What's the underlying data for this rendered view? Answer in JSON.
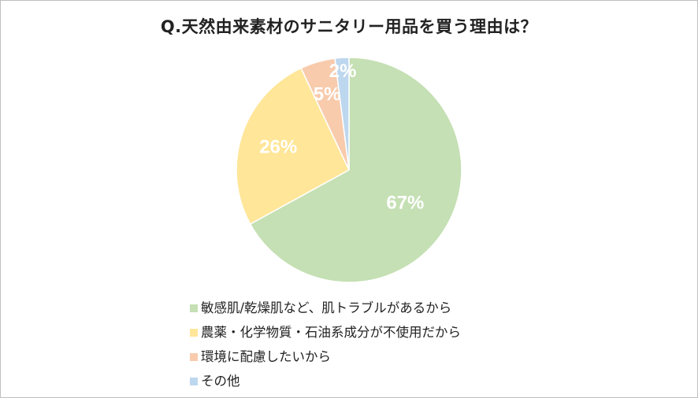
{
  "chart_data": {
    "type": "pie",
    "title": "Q.天然由来素材のサニタリー用品を買う理由は？",
    "slices": [
      {
        "label": "敏感肌/乾燥肌など、肌トラブルがあるから",
        "value": 67,
        "display": "67%",
        "color": "#c5e0b4"
      },
      {
        "label": "農薬・化学物質・石油系成分が不使用だから",
        "value": 26,
        "display": "26%",
        "color": "#ffe699"
      },
      {
        "label": "環境に配慮したいから",
        "value": 5,
        "display": "5%",
        "color": "#f8cbad"
      },
      {
        "label": "その他",
        "value": 2,
        "display": "2%",
        "color": "#bdd7ee"
      }
    ],
    "legend_position": "bottom"
  }
}
